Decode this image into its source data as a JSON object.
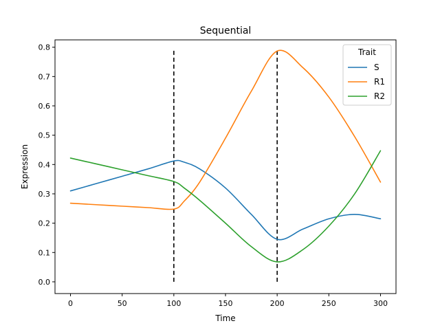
{
  "chart_data": {
    "type": "line",
    "title": "Sequential",
    "xlabel": "Time",
    "ylabel": "Expression",
    "xlim": [
      -15,
      315
    ],
    "ylim": [
      -0.04,
      0.825
    ],
    "xticks": [
      0,
      50,
      100,
      150,
      200,
      250,
      300
    ],
    "xtick_labels": [
      "0",
      "50",
      "100",
      "150",
      "200",
      "250",
      "300"
    ],
    "yticks": [
      0.0,
      0.1,
      0.2,
      0.3,
      0.4,
      0.5,
      0.6,
      0.7,
      0.8
    ],
    "ytick_labels": [
      "0.0",
      "0.1",
      "0.2",
      "0.3",
      "0.4",
      "0.5",
      "0.6",
      "0.7",
      "0.8"
    ],
    "grid": false,
    "legend": {
      "title": "Trait",
      "placement": "top-right"
    },
    "vlines": [
      {
        "x": 100,
        "y0": 0.0,
        "y1": 0.79,
        "style": "dashed",
        "color": "#000000"
      },
      {
        "x": 200,
        "y0": 0.0,
        "y1": 0.79,
        "style": "dashed",
        "color": "#000000"
      }
    ],
    "series": [
      {
        "name": "S",
        "color": "#1f77b4",
        "x": [
          0,
          25,
          50,
          75,
          100,
          110,
          125,
          150,
          175,
          200,
          225,
          250,
          275,
          300
        ],
        "y": [
          0.31,
          0.335,
          0.36,
          0.385,
          0.412,
          0.408,
          0.385,
          0.32,
          0.23,
          0.145,
          0.18,
          0.215,
          0.23,
          0.215
        ]
      },
      {
        "name": "R1",
        "color": "#ff7f0e",
        "x": [
          0,
          25,
          50,
          75,
          100,
          110,
          125,
          150,
          175,
          200,
          225,
          250,
          275,
          300
        ],
        "y": [
          0.268,
          0.263,
          0.258,
          0.253,
          0.248,
          0.275,
          0.34,
          0.49,
          0.65,
          0.787,
          0.73,
          0.63,
          0.495,
          0.34
        ]
      },
      {
        "name": "R2",
        "color": "#2ca02c",
        "x": [
          0,
          25,
          50,
          75,
          100,
          110,
          125,
          150,
          175,
          200,
          225,
          250,
          275,
          300
        ],
        "y": [
          0.422,
          0.402,
          0.382,
          0.362,
          0.342,
          0.32,
          0.278,
          0.2,
          0.12,
          0.068,
          0.11,
          0.19,
          0.3,
          0.447
        ]
      }
    ]
  }
}
